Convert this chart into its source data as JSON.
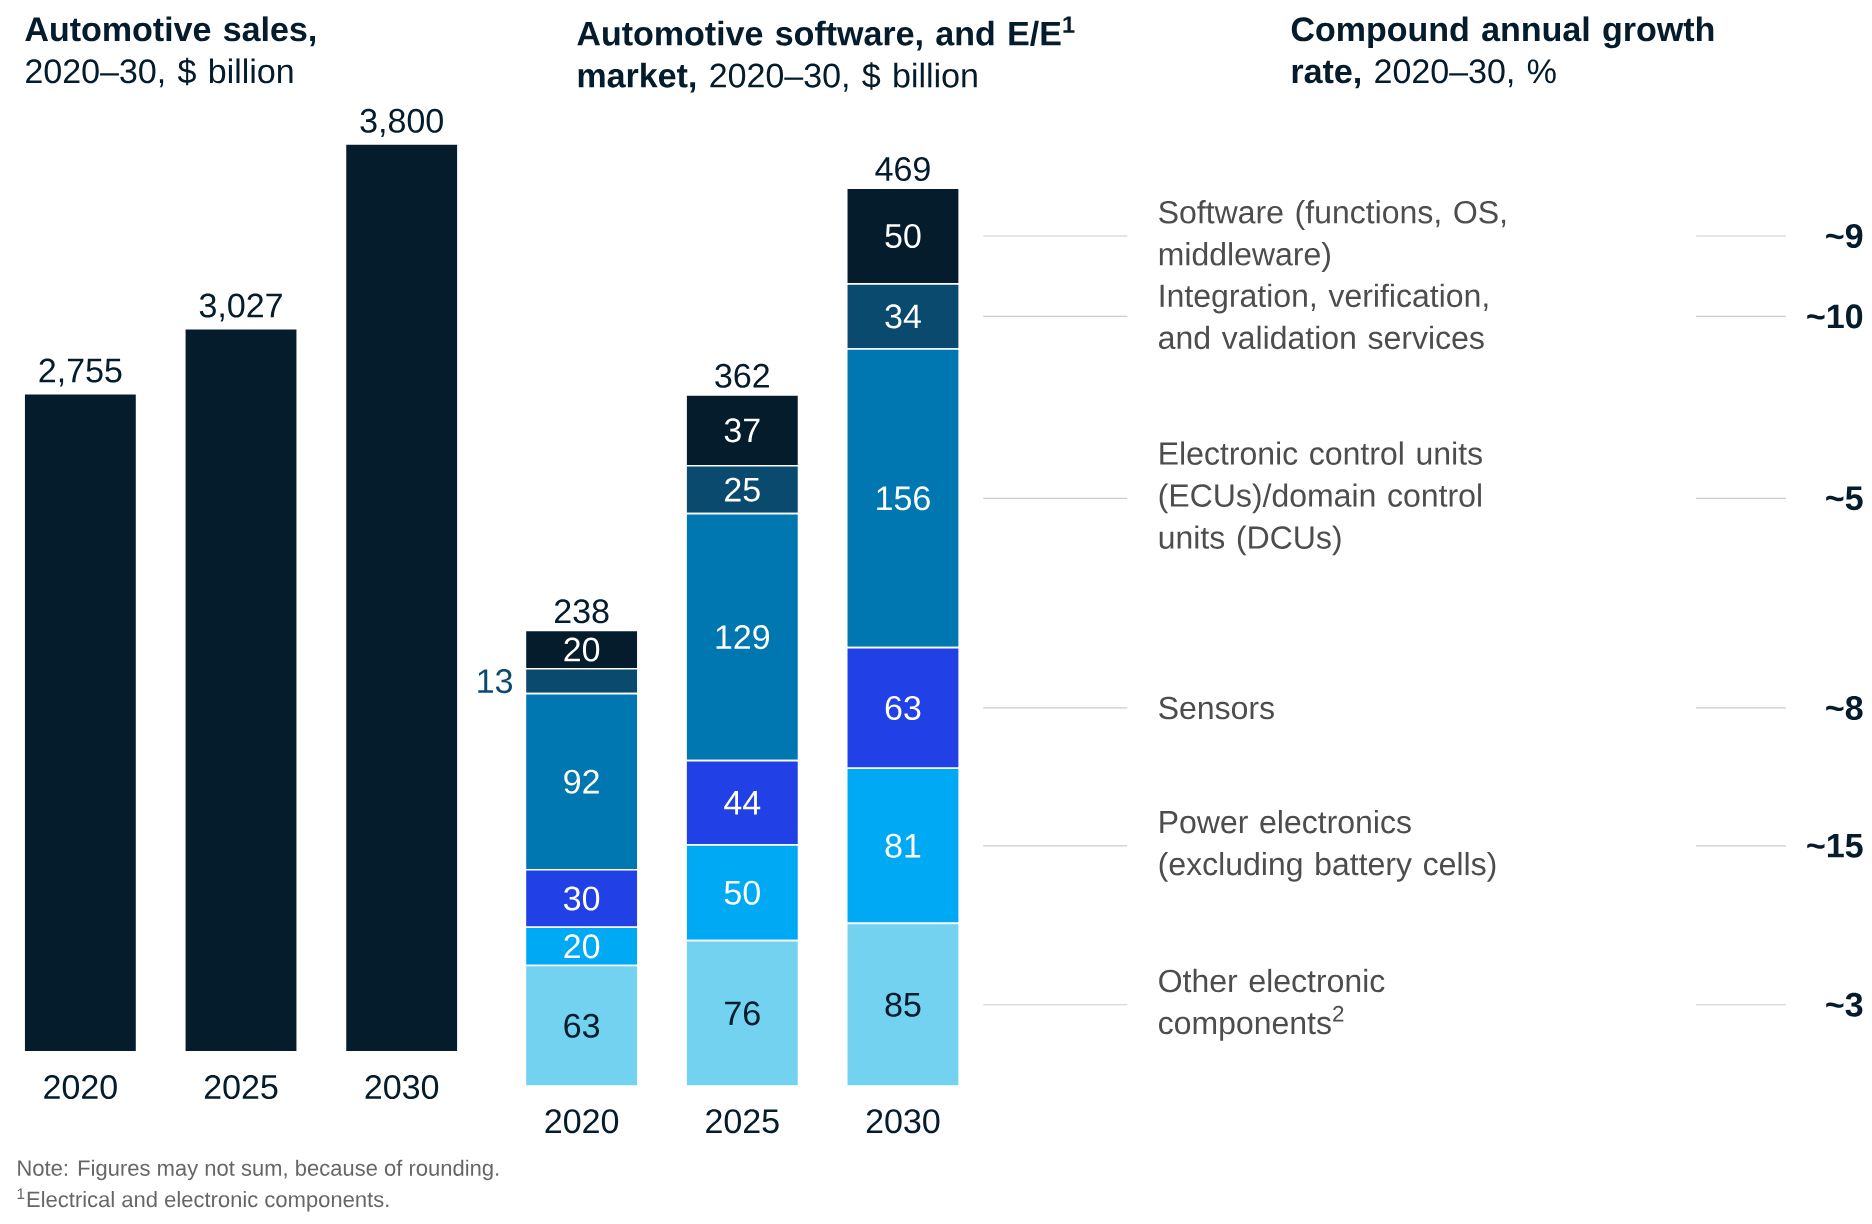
{
  "chart_data": [
    {
      "type": "bar",
      "title": "**Automotive sales,** 2020–30, $ billion",
      "categories": [
        "2020",
        "2025",
        "2030"
      ],
      "values": [
        2755,
        3027,
        3800
      ],
      "value_labels": [
        "2,755",
        "3,027",
        "3,800"
      ],
      "color": "#051c2c",
      "annotations": [
        "Note: Figures may not sum, because of rounding.",
        "$^{1}$Electrical and electronic components."
      ]
    },
    {
      "type": "bar",
      "title": "**Automotive software, and E/E$^{1}$ market,** 2020–30, $ billion",
      "categories": [
        "2020",
        "2025",
        "2030"
      ],
      "stacked": true,
      "data_labels": true,
      "legend": "right",
      "totals": [
        "238",
        "362",
        "469"
      ],
      "series": [
        {
          "name": "Other electronic components$^{2}$",
          "color": "#72d2f0",
          "values": [
            63,
            76,
            85
          ]
        },
        {
          "name": "Power electronics (excluding battery cells)",
          "color": "#00a9f4",
          "values": [
            20,
            50,
            81
          ]
        },
        {
          "name": "Sensors",
          "color": "#2140e6",
          "values": [
            30,
            44,
            63
          ]
        },
        {
          "name": "Electronic control units (ECUs)/domain control units (DCUs)",
          "color": "#0077b0",
          "values": [
            92,
            129,
            156
          ]
        },
        {
          "name": "Integration, verification, and validation services",
          "color": "#0b4a6f",
          "values": [
            13,
            25,
            34
          ]
        },
        {
          "name": "Software (functions, OS, middleware)",
          "color": "#051c2c",
          "values": [
            20,
            37,
            50
          ]
        }
      ]
    },
    {
      "type": "other",
      "title": "**Compound annual growth rate,** 2020–30, %",
      "values": [
        9,
        10,
        5,
        8,
        15,
        3
      ],
      "value_labels": [
        "~9",
        "~10",
        "~5",
        "~8",
        "~15",
        "~3"
      ]
    }
  ]
}
